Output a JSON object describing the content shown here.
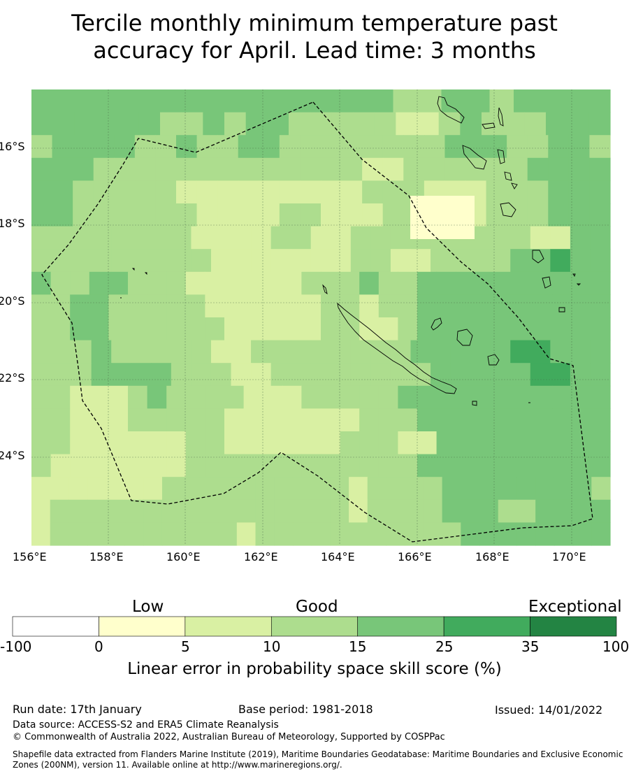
{
  "title_line1": "Tercile monthly minimum temperature past",
  "title_line2": "accuracy for April. Lead time: 3 months",
  "map": {
    "lat_labels": [
      "16°S",
      "18°S",
      "20°S",
      "22°S",
      "24°S"
    ],
    "lon_labels": [
      "156°E",
      "158°E",
      "160°E",
      "162°E",
      "164°E",
      "166°E",
      "168°E",
      "170°E"
    ],
    "extent_lon": [
      156,
      171
    ],
    "extent_lat": [
      -14.5,
      -26.3
    ],
    "grid": {
      "rows": [
        "CCCCCCCCCCCCCCCBBCCBCCCC",
        "CCCCCCBBCBCCBBBBBAABCBBBCCC",
        "BCCCCBBCBBCCBBBBBBBBCCCBBCCB",
        "CCCBBBBBBBBBBBBBAABBBBBBCCCC",
        "CCBBBBBAAAAAAAAABBBAAABBBCCC",
        "CCBBBBBBAAAABBAAABBAAABBBCCC",
        "BBBBBBBBAAAABBAABBBBBBBBBAACC",
        "BBBBBBBBBAAAAAAABBAABBBBCCDCC",
        "CBBCCBBBAAAAAABBBCBBCCCCCCCCCC",
        "BBCCBBBBBAAAAAABBABBCCCCCCCCCC",
        "BBCCBBBBBBAAAAABBAABCCCCCCCCCC",
        "BBBCBBBBBAABBBBBBBBCCCCCDDCCC",
        "BBBCCCCBBBAABBBBBBBBCCCCCDDCC",
        "BBAAABCBBBBAAABBBBBCCCCCCCCCCC",
        "BBAAABBBBBAAAAAAABBBCCCCCCCCCC",
        "BBAAAAAABBAAAAAABBBAACCCCCCCCC",
        "BAAAAAAABBBBBBBBBBBBCCCCCCCCCC",
        "AAAAAAABBBBBBBBBBABBBBCCCCCCCCB",
        "ABBBBBBBBBBBBBBBBABBBBCCCBBCCCC",
        "ABBBBBBBBBBABBBBBBBBBBBCCCCCCCC"
      ]
    }
  },
  "colorbar": {
    "categories": [
      "Low",
      "Good",
      "Exceptional"
    ],
    "bins": [
      {
        "from": -100,
        "to": 0,
        "color": "#ffffff"
      },
      {
        "from": 0,
        "to": 5,
        "color": "#ffffcc"
      },
      {
        "from": 5,
        "to": 10,
        "color": "#d9f0a3"
      },
      {
        "from": 10,
        "to": 15,
        "color": "#addd8e"
      },
      {
        "from": 15,
        "to": 25,
        "color": "#78c679"
      },
      {
        "from": 25,
        "to": 35,
        "color": "#41ab5d"
      },
      {
        "from": 35,
        "to": 100,
        "color": "#238443"
      }
    ],
    "tick_labels": [
      "-100",
      "0",
      "5",
      "10",
      "15",
      "25",
      "35",
      "100"
    ],
    "xlabel": "Linear error in probability space skill score (%)"
  },
  "footer": {
    "run_date": "Run date: 17th January",
    "base_period": "Base period: 1981-2018",
    "issued": "Issued: 14/01/2022",
    "data_source": "Data source: ACCESS-S2 and ERA5 Climate Reanalysis",
    "copyright": "© Commonwealth of Australia 2022, Australian Bureau of Meteorology, Supported by COSPPac",
    "shapefile_line1": "Shapefile data extracted from Flanders Marine Institute (2019), Maritime Boundaries Geodatabase: Maritime Boundaries and Exclusive Economic",
    "shapefile_line2": "Zones (200NM), version 11. Available online at http://www.marineregions.org/."
  }
}
